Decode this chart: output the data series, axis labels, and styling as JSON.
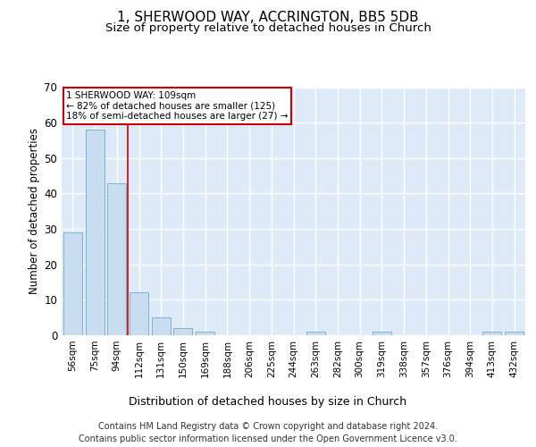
{
  "title": "1, SHERWOOD WAY, ACCRINGTON, BB5 5DB",
  "subtitle": "Size of property relative to detached houses in Church",
  "xlabel": "Distribution of detached houses by size in Church",
  "ylabel": "Number of detached properties",
  "categories": [
    "56sqm",
    "75sqm",
    "94sqm",
    "112sqm",
    "131sqm",
    "150sqm",
    "169sqm",
    "188sqm",
    "206sqm",
    "225sqm",
    "244sqm",
    "263sqm",
    "282sqm",
    "300sqm",
    "319sqm",
    "338sqm",
    "357sqm",
    "376sqm",
    "394sqm",
    "413sqm",
    "432sqm"
  ],
  "values": [
    29,
    58,
    43,
    12,
    5,
    2,
    1,
    0,
    0,
    0,
    0,
    1,
    0,
    0,
    1,
    0,
    0,
    0,
    0,
    1,
    1
  ],
  "bar_color": "#c9ddf0",
  "bar_edge_color": "#7ab3d8",
  "background_color": "#deeaf7",
  "grid_color": "#ffffff",
  "red_line_index": 3,
  "annotation_line1": "1 SHERWOOD WAY: 109sqm",
  "annotation_line2": "← 82% of detached houses are smaller (125)",
  "annotation_line3": "18% of semi-detached houses are larger (27) →",
  "annotation_box_color": "#ffffff",
  "annotation_border_color": "#cc0000",
  "red_line_color": "#cc0000",
  "ylim": [
    0,
    70
  ],
  "yticks": [
    0,
    10,
    20,
    30,
    40,
    50,
    60,
    70
  ],
  "footer": "Contains HM Land Registry data © Crown copyright and database right 2024.\nContains public sector information licensed under the Open Government Licence v3.0.",
  "title_fontsize": 11,
  "subtitle_fontsize": 9.5,
  "ylabel_fontsize": 8.5,
  "xlabel_fontsize": 9,
  "tick_fontsize": 7.5,
  "footer_fontsize": 7,
  "annotation_fontsize": 7.5
}
